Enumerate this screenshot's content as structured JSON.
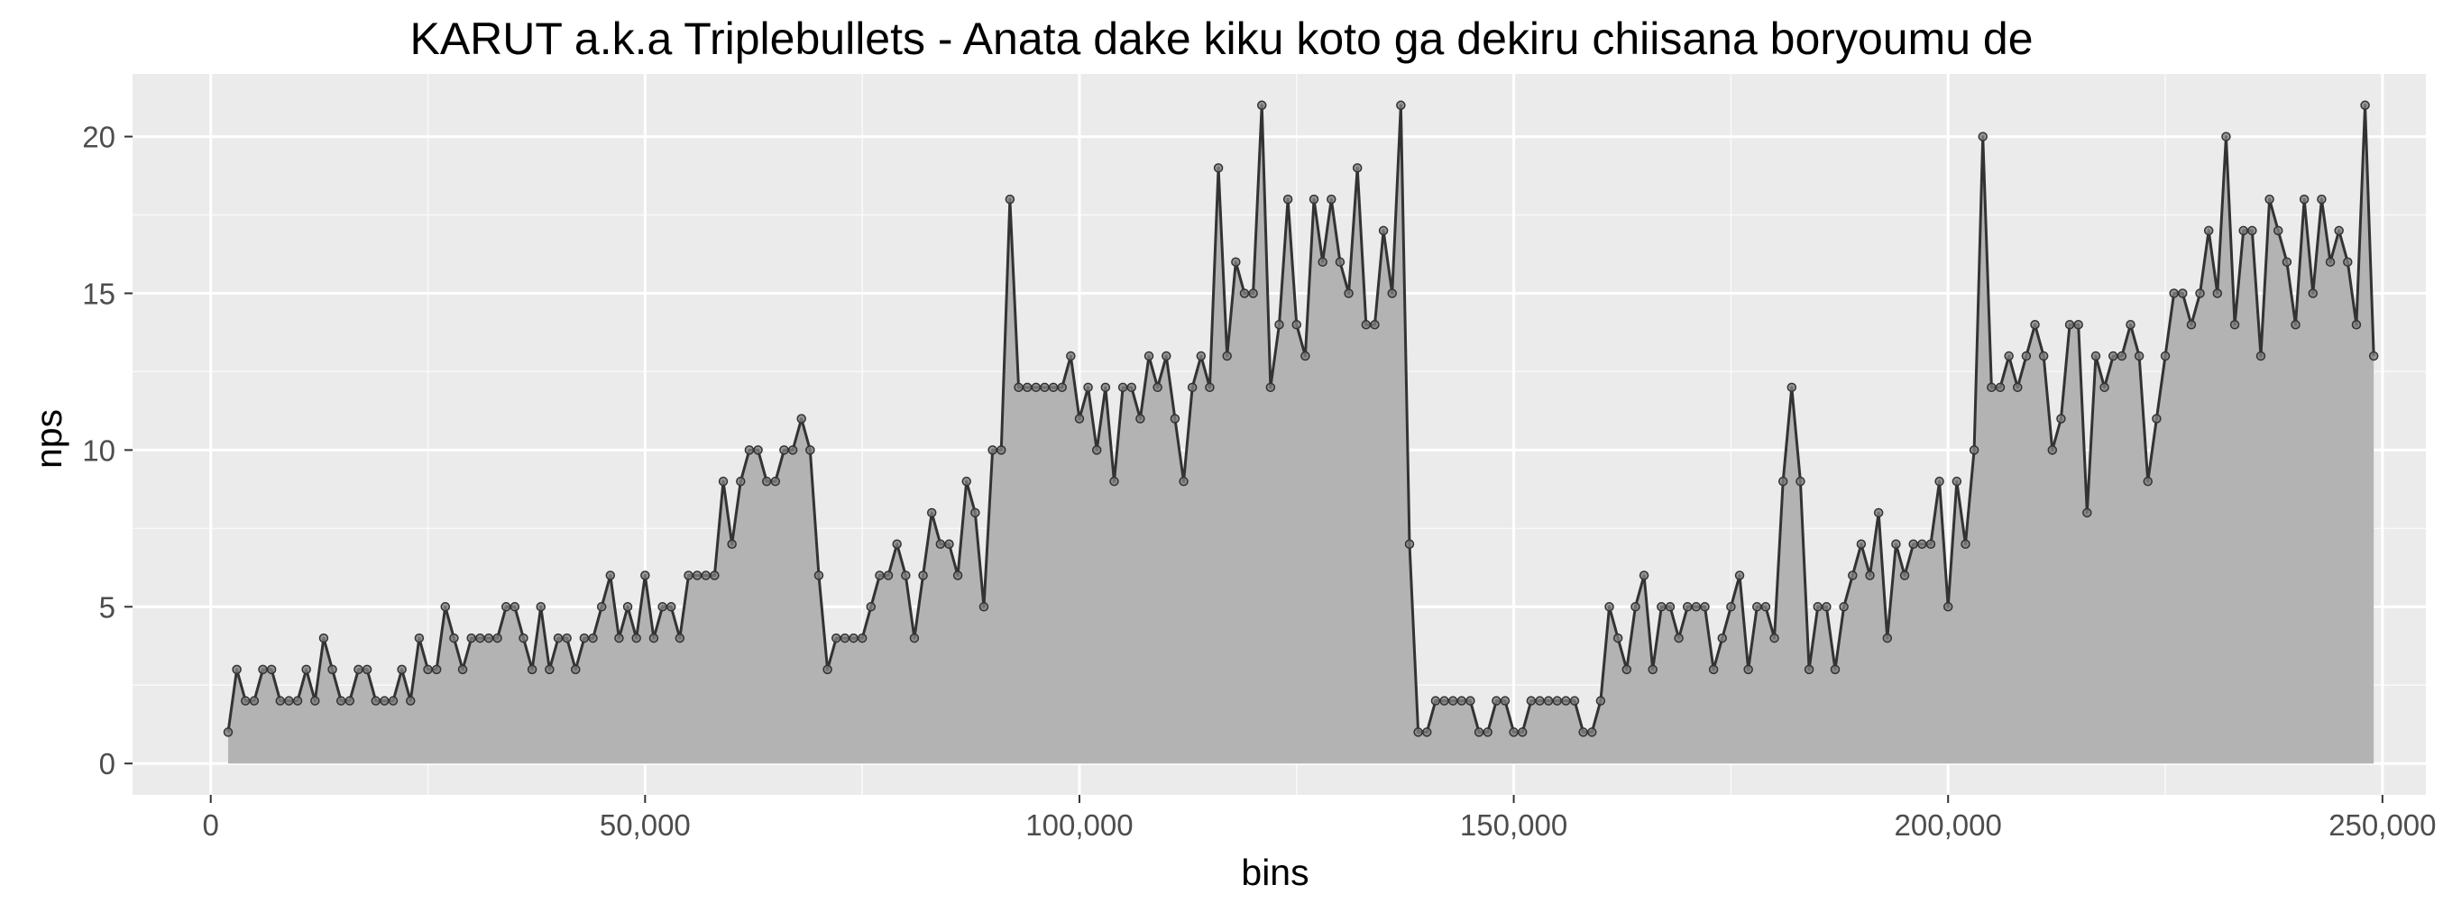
{
  "chart_data": {
    "type": "area",
    "title": "KARUT a.k.a Triplebullets - Anata dake kiku koto ga dekiru chiisana boryoumu de",
    "xlabel": "bins",
    "ylabel": "nps",
    "xlim": [
      -9000,
      255000
    ],
    "ylim": [
      -1,
      22
    ],
    "x_ticks": [
      0,
      50000,
      100000,
      150000,
      200000,
      250000
    ],
    "x_tick_labels": [
      "0",
      "50,000",
      "100,000",
      "150,000",
      "200,000",
      "250,000"
    ],
    "y_ticks": [
      0,
      5,
      10,
      15,
      20
    ],
    "y_tick_labels": [
      "0",
      "5",
      "10",
      "15",
      "20"
    ],
    "grid": true,
    "legend": "none",
    "colors": {
      "panel": "#ebebeb",
      "grid": "#ffffff",
      "fill": "#b3b3b3",
      "line": "#333333",
      "point_fill": "#808080",
      "point_stroke": "#333333"
    },
    "x_start": 2000,
    "x_step": 1000,
    "values": [
      1,
      3,
      2,
      2,
      3,
      3,
      2,
      2,
      2,
      3,
      2,
      4,
      3,
      2,
      2,
      3,
      3,
      2,
      2,
      2,
      3,
      2,
      4,
      3,
      3,
      5,
      4,
      3,
      4,
      4,
      4,
      4,
      5,
      5,
      4,
      3,
      5,
      3,
      4,
      4,
      3,
      4,
      4,
      5,
      6,
      4,
      5,
      4,
      6,
      4,
      5,
      5,
      4,
      6,
      6,
      6,
      6,
      9,
      7,
      9,
      10,
      10,
      9,
      9,
      10,
      10,
      11,
      10,
      6,
      3,
      4,
      4,
      4,
      4,
      5,
      6,
      6,
      7,
      6,
      4,
      6,
      8,
      7,
      7,
      6,
      9,
      8,
      5,
      10,
      10,
      18,
      12,
      12,
      12,
      12,
      12,
      12,
      13,
      11,
      12,
      10,
      12,
      9,
      12,
      12,
      11,
      13,
      12,
      13,
      11,
      9,
      12,
      13,
      12,
      19,
      13,
      16,
      15,
      15,
      21,
      12,
      14,
      18,
      14,
      13,
      18,
      16,
      18,
      16,
      15,
      19,
      14,
      14,
      17,
      15,
      21,
      7,
      1,
      1,
      2,
      2,
      2,
      2,
      2,
      1,
      1,
      2,
      2,
      1,
      1,
      2,
      2,
      2,
      2,
      2,
      2,
      1,
      1,
      2,
      5,
      4,
      3,
      5,
      6,
      3,
      5,
      5,
      4,
      5,
      5,
      5,
      3,
      4,
      5,
      6,
      3,
      5,
      5,
      4,
      9,
      12,
      9,
      3,
      5,
      5,
      3,
      5,
      6,
      7,
      6,
      8,
      4,
      7,
      6,
      7,
      7,
      7,
      9,
      5,
      9,
      7,
      10,
      20,
      12,
      12,
      13,
      12,
      13,
      14,
      13,
      10,
      11,
      14,
      14,
      8,
      13,
      12,
      13,
      13,
      14,
      13,
      9,
      11,
      13,
      15,
      15,
      14,
      15,
      17,
      15,
      20,
      14,
      17,
      17,
      13,
      18,
      17,
      16,
      14,
      18,
      15,
      18,
      16,
      17,
      16,
      14,
      21,
      13
    ]
  }
}
